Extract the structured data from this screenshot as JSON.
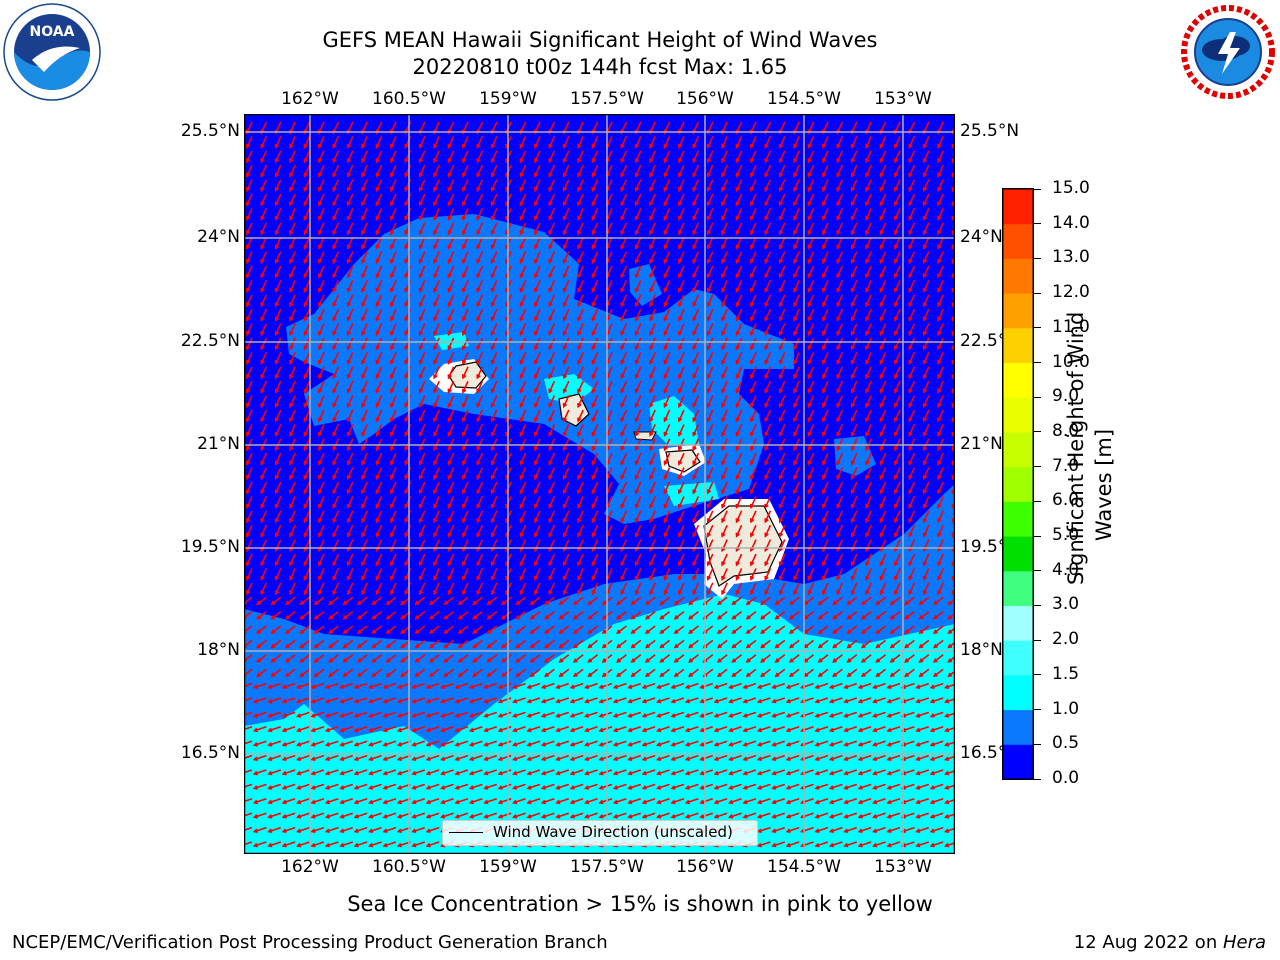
{
  "title_line1": "GEFS MEAN Hawaii Significant Height of Wind Waves",
  "title_line2": "20220810 t00z 144h fcst   Max: 1.65",
  "lon_ticks": [
    "162°W",
    "160.5°W",
    "159°W",
    "157.5°W",
    "156°W",
    "154.5°W",
    "153°W"
  ],
  "lat_ticks_left": [
    "25.5°N",
    "24°N",
    "22.5°N",
    "21°N",
    "19.5°N",
    "18°N",
    "16.5°N"
  ],
  "lat_ticks_right": [
    "25.5°N",
    "24°N",
    "22.5°N",
    "21°N",
    "19.5°N",
    "18°N",
    "16.5°N"
  ],
  "legend_label": "Wind Wave Direction (unscaled)",
  "colorbar": {
    "label_line1": "Significant Height of Wind",
    "label_line2": "Waves [m]",
    "ticks": [
      "15.0",
      "14.0",
      "13.0",
      "12.0",
      "11.0",
      "10.0",
      "9.0",
      "8.0",
      "7.0",
      "6.0",
      "5.0",
      "4.0",
      "3.0",
      "2.0",
      "1.5",
      "1.0",
      "0.5",
      "0.0"
    ],
    "bins": [
      0,
      0.5,
      1.0,
      1.5,
      2.0,
      3.0,
      4.0,
      5.0,
      6.0,
      7.0,
      8.0,
      9.0,
      10.0,
      11.0,
      12.0,
      13.0,
      14.0,
      15.0
    ],
    "colors": [
      "#0000ff",
      "#0a78ff",
      "#00ffff",
      "#40ffff",
      "#a0ffff",
      "#40ff80",
      "#00e000",
      "#40ff00",
      "#a0ff00",
      "#c8ff00",
      "#e8ff00",
      "#ffff00",
      "#ffd000",
      "#ffa000",
      "#ff7800",
      "#ff5000",
      "#ff2000"
    ]
  },
  "sea_ice_note": "Sea Ice Concentration > 15% is shown in pink to yellow",
  "footer_left": "NCEP/EMC/Verification Post Processing Product Generation Branch",
  "footer_right_date": "12 Aug 2022 on ",
  "footer_right_host": "Hera",
  "logos": {
    "left": "NOAA",
    "right": "NATIONAL WEATHER SERVICE"
  },
  "map_colors": {
    "deep": "#0000ff",
    "mid": "#0a78ff",
    "light": "#00ffff",
    "land": "#efebdc",
    "arrow": "#ff0000",
    "grid": "#b0b0b0"
  }
}
